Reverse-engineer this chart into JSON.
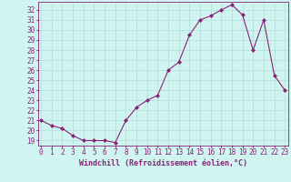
{
  "x": [
    0,
    1,
    2,
    3,
    4,
    5,
    6,
    7,
    8,
    9,
    10,
    11,
    12,
    13,
    14,
    15,
    16,
    17,
    18,
    19,
    20,
    21,
    22,
    23
  ],
  "y": [
    21.0,
    20.5,
    20.2,
    19.5,
    19.0,
    19.0,
    19.0,
    18.8,
    21.0,
    22.3,
    23.0,
    23.5,
    26.0,
    26.8,
    29.5,
    31.0,
    31.4,
    32.0,
    32.5,
    31.5,
    28.0,
    31.0,
    25.5,
    24.0
  ],
  "line_color": "#882277",
  "marker": "D",
  "marker_size": 2.0,
  "bg_color": "#d0f5f0",
  "grid_color": "#b0ddd8",
  "ylabel_ticks": [
    19,
    20,
    21,
    22,
    23,
    24,
    25,
    26,
    27,
    28,
    29,
    30,
    31,
    32
  ],
  "ylim": [
    18.5,
    32.8
  ],
  "xlim": [
    -0.3,
    23.3
  ],
  "xlabel": "Windchill (Refroidissement éolien,°C)",
  "tick_color": "#882277",
  "spine_color": "#882277",
  "tick_fontsize": 5.5,
  "xlabel_fontsize": 6.0
}
